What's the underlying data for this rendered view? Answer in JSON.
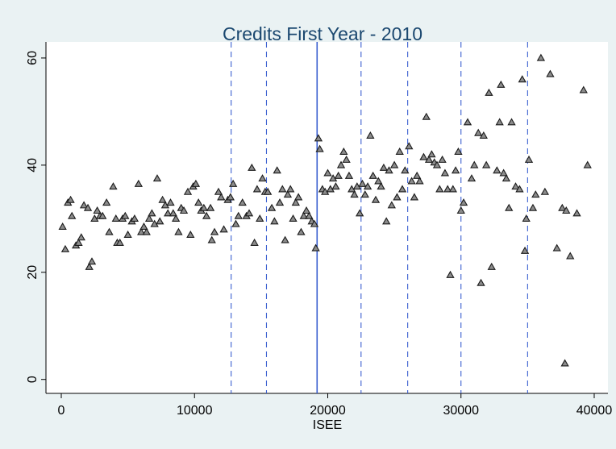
{
  "chart_data": {
    "type": "scatter",
    "title": "Credits First Year - 2010",
    "x_label": "ISEE",
    "color": "#8c8c8c",
    "edge_color": "#1a1a1a",
    "xlim": [
      -1150,
      41030
    ],
    "ylim": [
      -2.6,
      63
    ],
    "xticks": [
      0,
      10000,
      20000,
      30000,
      40000
    ],
    "yticks": [
      0,
      20,
      40,
      60
    ],
    "grid": false,
    "vlines": [
      {
        "value": 12750,
        "style": "dashed"
      },
      {
        "value": 15400,
        "style": "dashed"
      },
      {
        "value": 19200,
        "style": "solid"
      },
      {
        "value": 22500,
        "style": "dashed"
      },
      {
        "value": 26000,
        "style": "dashed"
      },
      {
        "value": 30000,
        "style": "dashed"
      },
      {
        "value": 35000,
        "style": "dashed"
      }
    ],
    "vline_color": "#3a5fd0",
    "x": [
      100,
      300,
      500,
      700,
      800,
      1100,
      1300,
      1500,
      1700,
      2000,
      2100,
      2300,
      2500,
      2700,
      2900,
      3100,
      3400,
      3600,
      3900,
      4100,
      4200,
      4400,
      4600,
      4800,
      5000,
      5300,
      5500,
      5800,
      6000,
      6200,
      6400,
      6600,
      6800,
      7000,
      7200,
      7400,
      7600,
      7800,
      8000,
      8200,
      8400,
      8600,
      8800,
      9000,
      9200,
      9500,
      9700,
      9900,
      10100,
      10300,
      10500,
      10700,
      10900,
      11200,
      11300,
      11500,
      11800,
      12000,
      12200,
      12500,
      12700,
      12900,
      13100,
      13300,
      13600,
      13900,
      14100,
      14300,
      14500,
      14700,
      14900,
      15100,
      15300,
      15500,
      15800,
      16000,
      16200,
      16400,
      16600,
      16800,
      17000,
      17200,
      17400,
      17600,
      17800,
      18000,
      18200,
      18400,
      18600,
      18800,
      19000,
      19100,
      19300,
      19400,
      19600,
      19800,
      20000,
      20200,
      20400,
      20600,
      20800,
      21000,
      21200,
      21400,
      21600,
      21800,
      22000,
      22200,
      22400,
      22600,
      22800,
      23000,
      23200,
      23400,
      23600,
      23800,
      24000,
      24200,
      24400,
      24600,
      24800,
      25000,
      25200,
      25400,
      25600,
      25800,
      26100,
      26300,
      26500,
      26700,
      26900,
      27200,
      27400,
      27600,
      27800,
      28000,
      28200,
      28400,
      28600,
      28800,
      29000,
      29200,
      29400,
      29600,
      29800,
      30000,
      30200,
      30500,
      30800,
      31000,
      31300,
      31500,
      31700,
      31900,
      32100,
      32300,
      32700,
      32900,
      33000,
      33200,
      33400,
      33600,
      33800,
      34100,
      34400,
      34600,
      34800,
      34900,
      35100,
      35400,
      35600,
      36000,
      36300,
      36700,
      37200,
      37600,
      37800,
      37900,
      38200,
      38700,
      39200,
      39500
    ],
    "values": [
      28.5,
      24.3,
      33,
      33.5,
      30.5,
      25,
      25.5,
      26.5,
      32.5,
      32,
      21,
      22,
      30,
      31.5,
      30.5,
      30.5,
      33,
      27.5,
      36,
      30,
      25.5,
      25.5,
      30,
      30.5,
      27,
      29.5,
      30,
      36.5,
      27.5,
      28.5,
      27.5,
      30,
      31,
      29,
      37.5,
      29.5,
      33.5,
      32.5,
      31,
      33,
      31,
      30,
      27.5,
      32,
      31.5,
      35,
      27,
      36,
      36.5,
      33,
      31.5,
      32,
      30.5,
      32,
      26,
      27.5,
      35,
      34,
      28,
      33.5,
      34,
      36.5,
      29,
      30.5,
      33,
      30.5,
      31,
      39.5,
      25.5,
      35.5,
      30,
      37.5,
      35,
      35,
      32,
      29.5,
      39,
      33,
      35.5,
      26,
      34.5,
      35.5,
      30,
      33,
      34,
      27.5,
      30.5,
      31.5,
      30.5,
      29.5,
      29,
      24.5,
      45,
      43,
      35.5,
      35,
      38.5,
      35.5,
      37.5,
      36,
      38,
      40,
      42.5,
      41,
      38,
      35.5,
      34.5,
      36,
      31,
      36.5,
      34.5,
      36,
      45.5,
      38,
      33.5,
      37,
      36,
      39.5,
      29.5,
      39,
      32.5,
      40,
      34,
      42.5,
      35.5,
      39,
      43.5,
      37,
      34,
      38,
      37,
      41.5,
      49,
      41,
      42,
      40.5,
      40,
      35.5,
      41,
      38.5,
      35.5,
      19.5,
      35.5,
      39,
      42.5,
      31.5,
      33,
      48,
      37.5,
      40,
      46,
      18,
      45.5,
      40,
      53.5,
      21,
      39,
      48,
      55,
      38.5,
      37.5,
      32,
      48,
      36,
      35.5,
      56,
      24,
      30,
      41,
      32,
      34.5,
      60,
      35,
      57,
      24.5,
      32,
      3,
      31.5,
      23,
      31,
      54,
      40
    ]
  }
}
